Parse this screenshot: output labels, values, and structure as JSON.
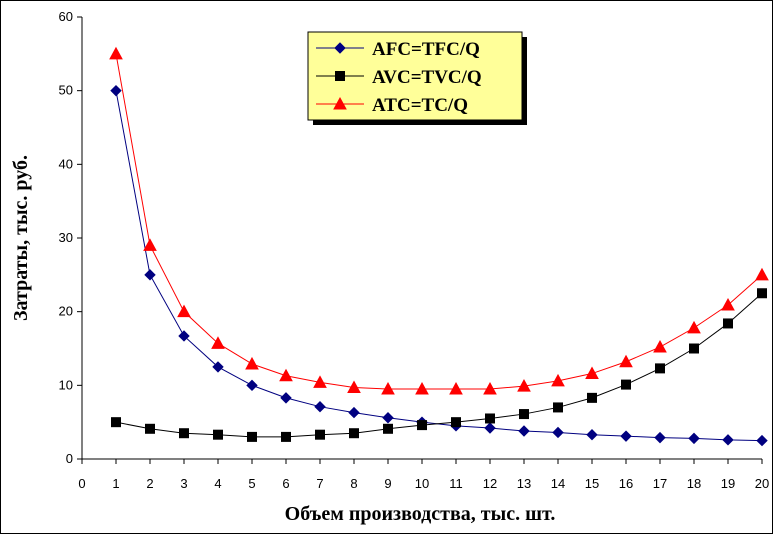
{
  "chart_data": {
    "type": "line",
    "xlabel": "Объем производства, тыс. шт.",
    "ylabel": "Затраты, тыс. руб.",
    "xlim": [
      0,
      20
    ],
    "ylim": [
      0,
      60
    ],
    "xticks": [
      0,
      1,
      2,
      3,
      4,
      5,
      6,
      7,
      8,
      9,
      10,
      11,
      12,
      13,
      14,
      15,
      16,
      17,
      18,
      19,
      20
    ],
    "yticks": [
      0,
      10,
      20,
      30,
      40,
      50,
      60
    ],
    "grid": false,
    "legend_position": "top-center",
    "x": [
      1,
      2,
      3,
      4,
      5,
      6,
      7,
      8,
      9,
      10,
      11,
      12,
      13,
      14,
      15,
      16,
      17,
      18,
      19,
      20
    ],
    "series": [
      {
        "name": "AFC=TFC/Q",
        "marker": "diamond",
        "color": "#000080",
        "values": [
          50,
          25,
          16.7,
          12.5,
          10,
          8.3,
          7.1,
          6.3,
          5.6,
          5,
          4.5,
          4.2,
          3.8,
          3.6,
          3.3,
          3.1,
          2.9,
          2.8,
          2.6,
          2.5
        ]
      },
      {
        "name": "AVC=TVC/Q",
        "marker": "square",
        "color": "#000000",
        "values": [
          5,
          4.1,
          3.5,
          3.3,
          3,
          3,
          3.3,
          3.5,
          4.1,
          4.6,
          5,
          5.5,
          6.1,
          7,
          8.3,
          10.1,
          12.3,
          15,
          18.4,
          22.5
        ]
      },
      {
        "name": "ATC=TC/Q",
        "marker": "triangle",
        "color": "#ff0000",
        "values": [
          55,
          29,
          20,
          15.7,
          12.9,
          11.3,
          10.4,
          9.7,
          9.5,
          9.5,
          9.5,
          9.5,
          9.9,
          10.6,
          11.6,
          13.2,
          15.2,
          17.8,
          20.9,
          25
        ]
      }
    ],
    "legend_bg": "#ffff99"
  }
}
